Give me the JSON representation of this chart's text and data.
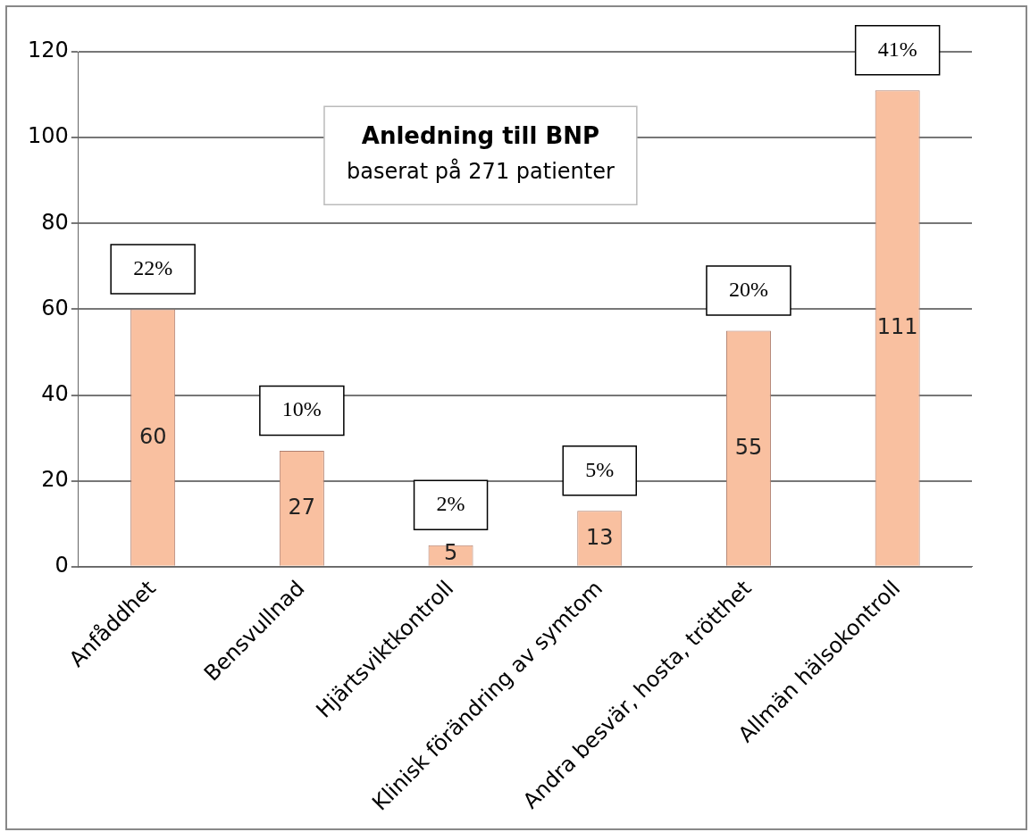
{
  "chart_data": {
    "type": "bar",
    "title": "Anledning till BNP",
    "subtitle": "baserat på 271 patienter",
    "categories": [
      "Anfåddhet",
      "Bensvullnad",
      "Hjärtsviktkontroll",
      "Klinisk förändring av symtom",
      "Andra besvär, hosta, trötthet",
      "Allmän hälsokontroll"
    ],
    "values": [
      60,
      27,
      5,
      13,
      55,
      111
    ],
    "color": "#f9c0a0",
    "data_labels": true,
    "ylim": [
      0,
      120
    ],
    "yticks": [
      0,
      20,
      40,
      60,
      80,
      100,
      120
    ],
    "grid": "y",
    "legend": false,
    "annotations": [
      {
        "text": "22%",
        "x": "Anfåddhet",
        "y": 60
      },
      {
        "text": "10%",
        "x": "Bensvullnad",
        "y": 27
      },
      {
        "text": "2%",
        "x": "Hjärtsviktkontroll",
        "y": 5
      },
      {
        "text": "5%",
        "x": "Klinisk förändring av symtom",
        "y": 13
      },
      {
        "text": "20%",
        "x": "Andra besvär, hosta, trötthet",
        "y": 55
      },
      {
        "text": "41%",
        "x": "Allmän hälsokontroll",
        "y": 111
      }
    ]
  }
}
